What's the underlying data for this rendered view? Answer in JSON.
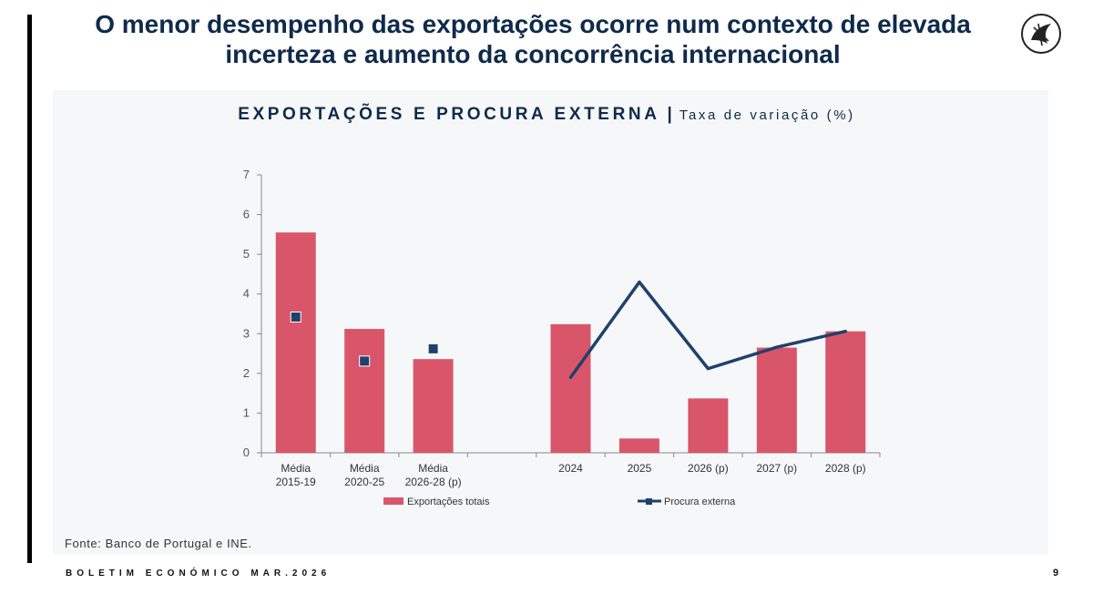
{
  "page": {
    "title": "O menor desempenho das exportações ocorre num contexto de elevada incerteza e aumento da concorrência internacional",
    "source": "Fonte: Banco de Portugal e INE.",
    "footer": "BOLETIM ECONÓMICO MAR.2026",
    "page_number": "9",
    "logo_icon": "bank-logo-icon"
  },
  "chart_data": {
    "type": "bar",
    "title": "EXPORTAÇÕES E PROCURA EXTERNA",
    "separator": "|",
    "subtitle": "Taxa de variação (%)",
    "ylim": [
      0,
      7
    ],
    "yticks": [
      "0",
      "1",
      "2",
      "3",
      "4",
      "5",
      "6",
      "7"
    ],
    "categories": [
      [
        "Média",
        "2015-19"
      ],
      [
        "Média",
        "2020-25"
      ],
      [
        "Média",
        "2026-28 (p)"
      ],
      [
        ""
      ],
      [
        "2024"
      ],
      [
        "2025"
      ],
      [
        "2026 (p)"
      ],
      [
        "2027 (p)"
      ],
      [
        "2028 (p)"
      ]
    ],
    "series": [
      {
        "name": "Exportações totais",
        "type": "bar",
        "color": "#d9566a",
        "values": [
          5.55,
          3.12,
          2.36,
          null,
          3.24,
          0.36,
          1.37,
          2.65,
          3.06
        ]
      },
      {
        "name": "Procura externa",
        "type": "line",
        "color": "#1f416b",
        "markers_for_averages": true,
        "values": [
          3.42,
          2.31,
          2.62,
          null,
          1.9,
          4.3,
          2.12,
          2.66,
          3.06
        ]
      }
    ],
    "legend": "bottom",
    "grid": false
  }
}
